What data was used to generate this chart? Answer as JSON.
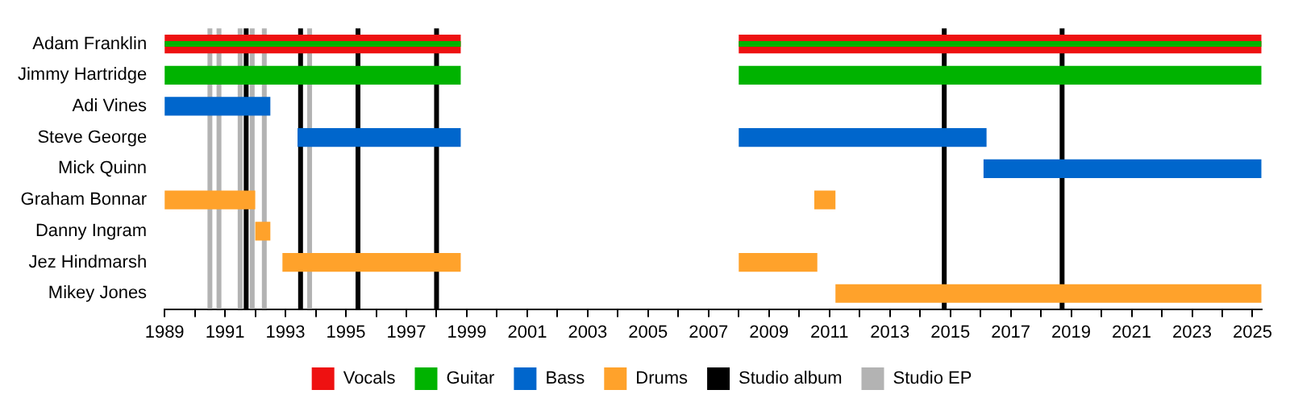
{
  "chart_data": {
    "type": "bar",
    "orientation": "horizontal",
    "categories": [
      "Adam Franklin",
      "Jimmy Hartridge",
      "Adi Vines",
      "Steve George",
      "Mick Quinn",
      "Graham Bonnar",
      "Danny Ingram",
      "Jez Hindmarsh",
      "Mikey Jones"
    ],
    "series": [
      {
        "name": "Vocals",
        "color": "#ee1111",
        "base": [
          1989,
          null,
          null,
          null,
          null,
          null,
          null,
          null,
          null
        ],
        "values": [
          9.8,
          null,
          null,
          null,
          null,
          null,
          null,
          null,
          null
        ]
      },
      {
        "color": "#ee1111",
        "base": [
          2008,
          null,
          null,
          null,
          null,
          null,
          null,
          null,
          null
        ],
        "values": [
          17.3,
          null,
          null,
          null,
          null,
          null,
          null,
          null,
          null
        ]
      },
      {
        "name": "Guitar",
        "color": "#00b300",
        "base": [
          1989,
          1989,
          null,
          null,
          null,
          null,
          null,
          null,
          null
        ],
        "values": [
          9.8,
          9.8,
          null,
          null,
          null,
          null,
          null,
          null,
          null
        ]
      },
      {
        "color": "#00b300",
        "base": [
          2008,
          2008,
          null,
          null,
          null,
          null,
          null,
          null,
          null
        ],
        "values": [
          17.3,
          17.3,
          null,
          null,
          null,
          null,
          null,
          null,
          null
        ]
      },
      {
        "name": "Bass",
        "color": "#0066cc",
        "base": [
          null,
          null,
          1989,
          1993.4,
          2016.1,
          null,
          null,
          null,
          null
        ],
        "values": [
          null,
          null,
          3.5,
          5.4,
          9.2,
          null,
          null,
          null,
          null
        ]
      },
      {
        "color": "#0066cc",
        "base": [
          null,
          null,
          null,
          2008,
          null,
          null,
          null,
          null,
          null
        ],
        "values": [
          null,
          null,
          null,
          8.2,
          null,
          null,
          null,
          null,
          null
        ]
      },
      {
        "name": "Drums",
        "color": "#ffa22b",
        "base": [
          null,
          null,
          null,
          null,
          null,
          1989,
          1992,
          1992.9,
          2011.2
        ],
        "values": [
          null,
          null,
          null,
          null,
          null,
          3,
          0.5,
          5.9,
          14.1
        ]
      },
      {
        "color": "#ffa22b",
        "base": [
          null,
          null,
          null,
          null,
          null,
          2010.5,
          null,
          2008,
          null
        ],
        "values": [
          null,
          null,
          null,
          null,
          null,
          0.7,
          null,
          2.6,
          null
        ]
      }
    ],
    "ref_lines": [
      {
        "axis": "x",
        "value": 1991.7,
        "label": "Studio album",
        "color": "#000000"
      },
      {
        "axis": "x",
        "value": 1993.5,
        "color": "#000000"
      },
      {
        "axis": "x",
        "value": 1995.4,
        "color": "#000000"
      },
      {
        "axis": "x",
        "value": 1998,
        "color": "#000000"
      },
      {
        "axis": "x",
        "value": 2014.8,
        "color": "#000000"
      },
      {
        "axis": "x",
        "value": 2018.7,
        "color": "#000000"
      },
      {
        "axis": "x",
        "value": 1990.5,
        "label": "Studio EP",
        "color": "#b3b3b3"
      },
      {
        "axis": "x",
        "value": 1990.8,
        "color": "#b3b3b3"
      },
      {
        "axis": "x",
        "value": 1991.5,
        "color": "#b3b3b3"
      },
      {
        "axis": "x",
        "value": 1991.9,
        "color": "#b3b3b3"
      },
      {
        "axis": "x",
        "value": 1992.3,
        "color": "#b3b3b3"
      },
      {
        "axis": "x",
        "value": 1993.8,
        "color": "#b3b3b3"
      }
    ],
    "xlim": [
      1989,
      2025.3
    ],
    "xticks": [
      1989,
      {
        "value": 1990,
        "label": null
      },
      1991,
      {
        "value": 1992,
        "label": null
      },
      1993,
      {
        "value": 1994,
        "label": null
      },
      1995,
      {
        "value": 1996,
        "label": null
      },
      1997,
      {
        "value": 1998,
        "label": null
      },
      1999,
      {
        "value": 2000,
        "label": null
      },
      2001,
      {
        "value": 2002,
        "label": null
      },
      2003,
      {
        "value": 2004,
        "label": null
      },
      2005,
      {
        "value": 2006,
        "label": null
      },
      2007,
      {
        "value": 2008,
        "label": null
      },
      2009,
      {
        "value": 2010,
        "label": null
      },
      2011,
      {
        "value": 2012,
        "label": null
      },
      2013,
      {
        "value": 2014,
        "label": null
      },
      2015,
      {
        "value": 2016,
        "label": null
      },
      2017,
      {
        "value": 2018,
        "label": null
      },
      2019,
      {
        "value": 2020,
        "label": null
      },
      2021,
      {
        "value": 2022,
        "label": null
      },
      2023,
      {
        "value": 2024,
        "label": null
      },
      2025
    ],
    "grid": false,
    "legend": "bottom"
  }
}
